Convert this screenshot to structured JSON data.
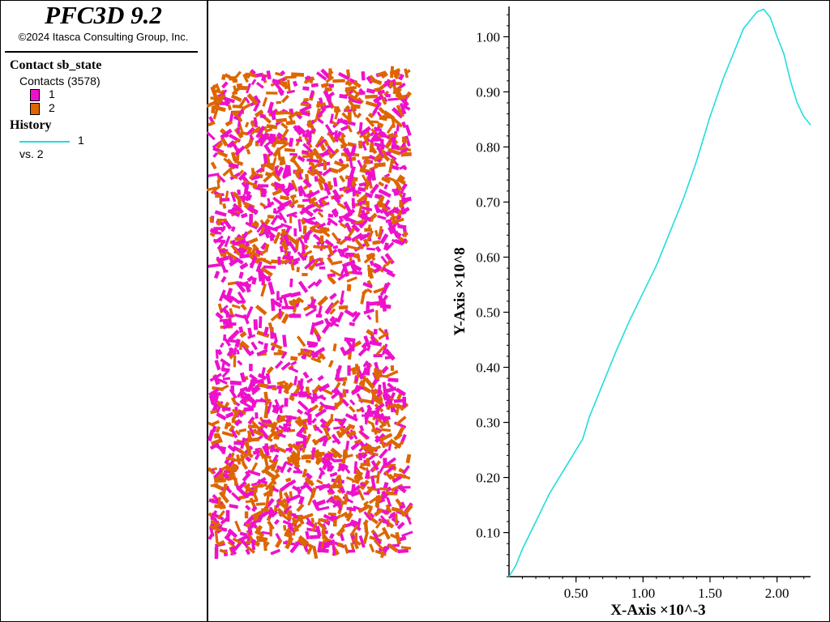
{
  "app": {
    "title": "PFC3D 9.2",
    "copyright": "©2024 Itasca Consulting Group, Inc."
  },
  "legend": {
    "contact_title": "Contact sb_state",
    "contacts_label": "Contacts (3578)",
    "states": [
      {
        "label": "1",
        "color": "#ee11cc"
      },
      {
        "label": "2",
        "color": "#dd6600"
      }
    ],
    "history_title": "History",
    "history_series": {
      "label": "1",
      "color": "#22dddd"
    },
    "history_vs": "vs. 2"
  },
  "particles": {
    "colors": {
      "state1": "#ee11cc",
      "state2": "#dd6600"
    }
  },
  "chart_data": {
    "type": "line",
    "xlabel": "X-Axis ×10^-3",
    "ylabel": "Y-Axis ×10^8",
    "xlim": [
      0,
      2.25
    ],
    "ylim": [
      0.02,
      1.055
    ],
    "x_ticks": [
      "0.50",
      "1.00",
      "1.50",
      "2.00"
    ],
    "y_ticks": [
      "0.10",
      "0.20",
      "0.30",
      "0.40",
      "0.50",
      "0.60",
      "0.70",
      "0.80",
      "0.90",
      "1.00"
    ],
    "grid": false,
    "series": [
      {
        "name": "1",
        "color": "#22dddd",
        "x": [
          0,
          0.05,
          0.1,
          0.2,
          0.3,
          0.4,
          0.5,
          0.55,
          0.6,
          0.7,
          0.8,
          0.9,
          1.0,
          1.1,
          1.2,
          1.3,
          1.4,
          1.5,
          1.6,
          1.65,
          1.7,
          1.75,
          1.8,
          1.85,
          1.9,
          1.95,
          2.0,
          2.05,
          2.1,
          2.15,
          2.2,
          2.25
        ],
        "y": [
          0.02,
          0.04,
          0.07,
          0.12,
          0.17,
          0.21,
          0.25,
          0.27,
          0.31,
          0.37,
          0.43,
          0.485,
          0.535,
          0.585,
          0.645,
          0.705,
          0.775,
          0.855,
          0.925,
          0.955,
          0.985,
          1.015,
          1.03,
          1.045,
          1.05,
          1.035,
          1.0,
          0.97,
          0.92,
          0.88,
          0.855,
          0.84
        ]
      }
    ]
  }
}
